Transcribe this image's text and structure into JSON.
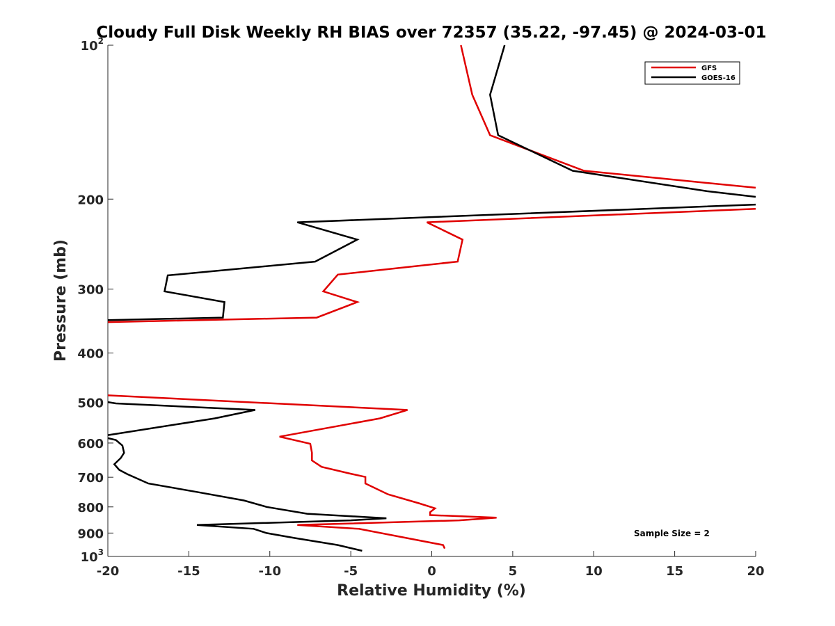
{
  "chart_data": {
    "type": "line",
    "title": "Cloudy Full Disk Weekly RH BIAS over 72357 (35.22, -97.45) @ 2024-03-01",
    "xlabel": "Relative Humidity (%)",
    "ylabel": "Pressure (mb)",
    "xlim": [
      -20,
      20
    ],
    "ylim": [
      100,
      1000
    ],
    "y_scale": "log",
    "y_reversed": true,
    "grid": false,
    "legend_position": "top-right",
    "x_ticks": [
      -20,
      -15,
      -10,
      -5,
      0,
      5,
      10,
      15,
      20
    ],
    "x_tick_labels": [
      "-20",
      "-15",
      "-10",
      "-5",
      "0",
      "5",
      "10",
      "15",
      "20"
    ],
    "y_ticks": [
      {
        "value": 100,
        "base": "10",
        "exp": "2"
      },
      {
        "value": 200,
        "base": "200",
        "exp": ""
      },
      {
        "value": 300,
        "base": "300",
        "exp": ""
      },
      {
        "value": 400,
        "base": "400",
        "exp": ""
      },
      {
        "value": 500,
        "base": "500",
        "exp": ""
      },
      {
        "value": 600,
        "base": "600",
        "exp": ""
      },
      {
        "value": 700,
        "base": "700",
        "exp": ""
      },
      {
        "value": 800,
        "base": "800",
        "exp": ""
      },
      {
        "value": 900,
        "base": "900",
        "exp": ""
      },
      {
        "value": 1000,
        "base": "10",
        "exp": "3"
      }
    ],
    "annotation": "Sample Size = 2",
    "series": [
      {
        "name": "GFS",
        "color": "#e00000",
        "segments": [
          [
            [
              1.8,
              100
            ],
            [
              2.5,
              125
            ],
            [
              3.6,
              150
            ],
            [
              9.4,
              176
            ],
            [
              20,
              190
            ]
          ],
          [
            [
              20,
              209
            ],
            [
              -0.3,
              222
            ],
            [
              1.9,
              240
            ],
            [
              1.6,
              265
            ],
            [
              -5.8,
              281
            ],
            [
              -6.7,
              303
            ],
            [
              -4.6,
              318
            ],
            [
              -7.1,
              341
            ],
            [
              -20,
              348
            ]
          ],
          [
            [
              -20,
              484
            ],
            [
              -1.5,
              517
            ],
            [
              -3.2,
              537
            ],
            [
              -9.4,
              583
            ],
            [
              -7.5,
              602
            ],
            [
              -7.4,
              627
            ],
            [
              -7.4,
              649
            ],
            [
              -6.8,
              668
            ],
            [
              -5.0,
              689
            ],
            [
              -4.1,
              699
            ],
            [
              -4.1,
              720
            ],
            [
              -2.7,
              756
            ],
            [
              -0.8,
              787
            ],
            [
              0.2,
              805
            ],
            [
              -0.1,
              819
            ],
            [
              -0.1,
              830
            ],
            [
              4.0,
              840
            ],
            [
              1.7,
              850
            ],
            [
              -8.3,
              868
            ],
            [
              -4.5,
              883
            ],
            [
              0.7,
              950
            ],
            [
              0.8,
              965
            ]
          ]
        ]
      },
      {
        "name": "GOES-16",
        "color": "#000000",
        "segments": [
          [
            [
              4.5,
              100
            ],
            [
              3.6,
              125
            ],
            [
              4.1,
              150
            ],
            [
              8.7,
              176
            ],
            [
              17.0,
              193
            ],
            [
              20,
              198
            ]
          ],
          [
            [
              20,
              205
            ],
            [
              -8.3,
              222
            ],
            [
              -4.6,
              240
            ],
            [
              -7.2,
              265
            ],
            [
              -16.3,
              282
            ],
            [
              -16.5,
              303
            ],
            [
              -12.8,
              318
            ],
            [
              -12.9,
              341
            ],
            [
              -20,
              345
            ]
          ],
          [
            [
              -20,
              499
            ],
            [
              -19.5,
              502
            ],
            [
              -10.9,
              517
            ],
            [
              -13.4,
              537
            ],
            [
              -20,
              579
            ]
          ],
          [
            [
              -20,
              587
            ],
            [
              -19.5,
              592
            ],
            [
              -19.1,
              607
            ],
            [
              -19.0,
              627
            ],
            [
              -19.2,
              642
            ],
            [
              -19.6,
              660
            ],
            [
              -19.3,
              677
            ],
            [
              -18.8,
              690
            ],
            [
              -17.5,
              720
            ],
            [
              -14.5,
              748
            ],
            [
              -11.6,
              777
            ],
            [
              -10.2,
              800
            ],
            [
              -7.7,
              825
            ],
            [
              -2.8,
              842
            ],
            [
              -5.0,
              850
            ],
            [
              -14.5,
              868
            ],
            [
              -11.0,
              883
            ],
            [
              -10.2,
              900
            ],
            [
              -8.5,
              920
            ],
            [
              -5.8,
              950
            ],
            [
              -4.3,
              975
            ]
          ]
        ]
      }
    ]
  }
}
